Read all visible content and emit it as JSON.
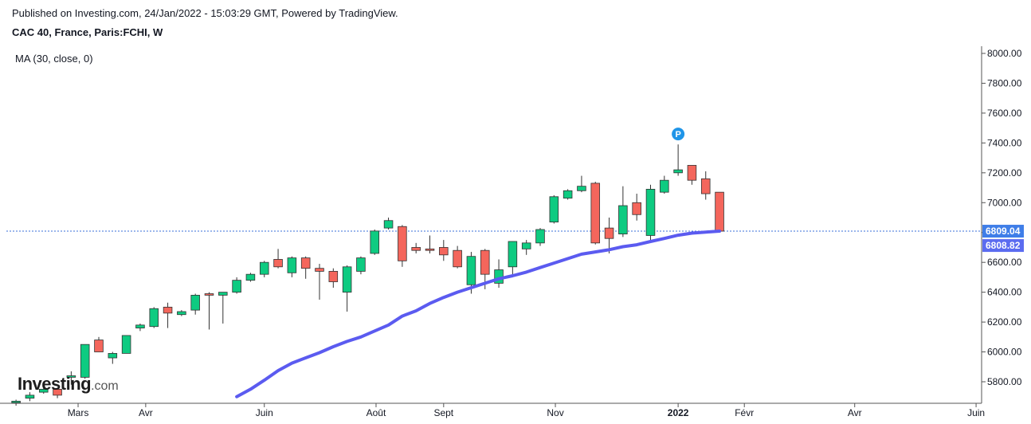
{
  "header": {
    "published": "Published on Investing.com, 24/Jan/2022 - 15:03:29 GMT, Powered by TradingView.",
    "symbol": "CAC 40, France, Paris:FCHI, W"
  },
  "indicator": {
    "label": "MA (30, close, 0)"
  },
  "logo": {
    "brand": "Investing",
    "tld": ".com"
  },
  "marker": {
    "label": "P"
  },
  "colors": {
    "up": "#0ecb81",
    "down": "#f4665c",
    "ma": "#5b5bf0",
    "price_line": "#3a6fd8",
    "price_tag": "#3f7ee8",
    "ma_tag": "#5b6cf0",
    "marker": "#1f95e8"
  },
  "chart_data": {
    "type": "candlestick",
    "y_axis": {
      "range": [
        5700,
        8050
      ],
      "ticks": [
        {
          "value": 5800,
          "label": "5800.00"
        },
        {
          "value": 6000,
          "label": "6000.00"
        },
        {
          "value": 6200,
          "label": "6200.00"
        },
        {
          "value": 6400,
          "label": "6400.00"
        },
        {
          "value": 6600,
          "label": "6600.00"
        },
        {
          "value": 6800,
          "label": "6800.00"
        },
        {
          "value": 7000,
          "label": "7000.00"
        },
        {
          "value": 7200,
          "label": "7200.00"
        },
        {
          "value": 7400,
          "label": "7400.00"
        },
        {
          "value": 7600,
          "label": "7600.00"
        },
        {
          "value": 7800,
          "label": "7800.00"
        },
        {
          "value": 8000,
          "label": "8000.00"
        }
      ]
    },
    "x_axis": {
      "week_range": [
        -0.7,
        70
      ],
      "ticks": [
        {
          "week": 4.5,
          "label": "Mars",
          "bold": false
        },
        {
          "week": 9.4,
          "label": "Avr",
          "bold": false
        },
        {
          "week": 18.0,
          "label": "Juin",
          "bold": false
        },
        {
          "week": 26.1,
          "label": "Août",
          "bold": false
        },
        {
          "week": 31.0,
          "label": "Sept",
          "bold": false
        },
        {
          "week": 39.1,
          "label": "Nov",
          "bold": false
        },
        {
          "week": 48.0,
          "label": "2022",
          "bold": true
        },
        {
          "week": 52.8,
          "label": "Févr",
          "bold": false
        },
        {
          "week": 60.8,
          "label": "Avr",
          "bold": false
        },
        {
          "week": 69.6,
          "label": "Juin",
          "bold": false
        }
      ]
    },
    "last_price": {
      "value": 6809.04,
      "label": "6809.04"
    },
    "ma_last": {
      "value": 6808.82,
      "label": "6808.82"
    },
    "candles": [
      {
        "o": 5660,
        "h": 5680,
        "l": 5640,
        "c": 5670
      },
      {
        "o": 5690,
        "h": 5730,
        "l": 5670,
        "c": 5710
      },
      {
        "o": 5730,
        "h": 5770,
        "l": 5720,
        "c": 5750
      },
      {
        "o": 5750,
        "h": 5760,
        "l": 5690,
        "c": 5710
      },
      {
        "o": 5830,
        "h": 5870,
        "l": 5780,
        "c": 5840
      },
      {
        "o": 5830,
        "h": 6050,
        "l": 5820,
        "c": 6050
      },
      {
        "o": 6080,
        "h": 6100,
        "l": 6000,
        "c": 6000
      },
      {
        "o": 5960,
        "h": 6000,
        "l": 5920,
        "c": 5990
      },
      {
        "o": 5990,
        "h": 6110,
        "l": 5990,
        "c": 6110
      },
      {
        "o": 6160,
        "h": 6190,
        "l": 6140,
        "c": 6180
      },
      {
        "o": 6170,
        "h": 6300,
        "l": 6160,
        "c": 6290
      },
      {
        "o": 6300,
        "h": 6330,
        "l": 6160,
        "c": 6260
      },
      {
        "o": 6250,
        "h": 6280,
        "l": 6240,
        "c": 6270
      },
      {
        "o": 6280,
        "h": 6390,
        "l": 6250,
        "c": 6380
      },
      {
        "o": 6390,
        "h": 6400,
        "l": 6150,
        "c": 6380
      },
      {
        "o": 6380,
        "h": 6400,
        "l": 6190,
        "c": 6400
      },
      {
        "o": 6400,
        "h": 6500,
        "l": 6390,
        "c": 6480
      },
      {
        "o": 6480,
        "h": 6530,
        "l": 6470,
        "c": 6520
      },
      {
        "o": 6520,
        "h": 6610,
        "l": 6500,
        "c": 6600
      },
      {
        "o": 6620,
        "h": 6690,
        "l": 6560,
        "c": 6570
      },
      {
        "o": 6530,
        "h": 6640,
        "l": 6500,
        "c": 6630
      },
      {
        "o": 6630,
        "h": 6640,
        "l": 6490,
        "c": 6560
      },
      {
        "o": 6560,
        "h": 6590,
        "l": 6350,
        "c": 6540
      },
      {
        "o": 6540,
        "h": 6560,
        "l": 6430,
        "c": 6470
      },
      {
        "o": 6400,
        "h": 6580,
        "l": 6270,
        "c": 6570
      },
      {
        "o": 6540,
        "h": 6640,
        "l": 6520,
        "c": 6630
      },
      {
        "o": 6660,
        "h": 6820,
        "l": 6650,
        "c": 6810
      },
      {
        "o": 6830,
        "h": 6900,
        "l": 6820,
        "c": 6880
      },
      {
        "o": 6840,
        "h": 6850,
        "l": 6570,
        "c": 6610
      },
      {
        "o": 6700,
        "h": 6730,
        "l": 6660,
        "c": 6680
      },
      {
        "o": 6690,
        "h": 6780,
        "l": 6660,
        "c": 6680
      },
      {
        "o": 6700,
        "h": 6750,
        "l": 6610,
        "c": 6650
      },
      {
        "o": 6680,
        "h": 6710,
        "l": 6560,
        "c": 6570
      },
      {
        "o": 6450,
        "h": 6670,
        "l": 6390,
        "c": 6640
      },
      {
        "o": 6680,
        "h": 6690,
        "l": 6420,
        "c": 6520
      },
      {
        "o": 6460,
        "h": 6620,
        "l": 6430,
        "c": 6550
      },
      {
        "o": 6570,
        "h": 6740,
        "l": 6520,
        "c": 6740
      },
      {
        "o": 6690,
        "h": 6750,
        "l": 6650,
        "c": 6730
      },
      {
        "o": 6730,
        "h": 6830,
        "l": 6710,
        "c": 6820
      },
      {
        "o": 6870,
        "h": 7050,
        "l": 6860,
        "c": 7040
      },
      {
        "o": 7030,
        "h": 7090,
        "l": 7020,
        "c": 7080
      },
      {
        "o": 7080,
        "h": 7180,
        "l": 7070,
        "c": 7110
      },
      {
        "o": 7130,
        "h": 7140,
        "l": 6720,
        "c": 6730
      },
      {
        "o": 6830,
        "h": 6900,
        "l": 6660,
        "c": 6760
      },
      {
        "o": 6790,
        "h": 7110,
        "l": 6770,
        "c": 6980
      },
      {
        "o": 7000,
        "h": 7060,
        "l": 6880,
        "c": 6920
      },
      {
        "o": 6780,
        "h": 7120,
        "l": 6740,
        "c": 7090
      },
      {
        "o": 7070,
        "h": 7180,
        "l": 7060,
        "c": 7150
      },
      {
        "o": 7200,
        "h": 7390,
        "l": 7180,
        "c": 7220
      },
      {
        "o": 7250,
        "h": 7250,
        "l": 7120,
        "c": 7150
      },
      {
        "o": 7160,
        "h": 7210,
        "l": 7020,
        "c": 7060
      },
      {
        "o": 7070,
        "h": 7070,
        "l": 6810,
        "c": 6809
      }
    ],
    "ma_line": [
      {
        "week": 16.0,
        "value": 5700
      },
      {
        "week": 17.0,
        "value": 5750
      },
      {
        "week": 18.0,
        "value": 5810
      },
      {
        "week": 19.0,
        "value": 5875
      },
      {
        "week": 20.0,
        "value": 5925
      },
      {
        "week": 21.0,
        "value": 5960
      },
      {
        "week": 22.0,
        "value": 5995
      },
      {
        "week": 23.0,
        "value": 6035
      },
      {
        "week": 24.0,
        "value": 6070
      },
      {
        "week": 25.0,
        "value": 6100
      },
      {
        "week": 26.0,
        "value": 6140
      },
      {
        "week": 27.0,
        "value": 6180
      },
      {
        "week": 28.0,
        "value": 6240
      },
      {
        "week": 29.0,
        "value": 6275
      },
      {
        "week": 30.0,
        "value": 6325
      },
      {
        "week": 31.0,
        "value": 6365
      },
      {
        "week": 32.0,
        "value": 6400
      },
      {
        "week": 33.0,
        "value": 6430
      },
      {
        "week": 34.0,
        "value": 6460
      },
      {
        "week": 35.0,
        "value": 6490
      },
      {
        "week": 36.0,
        "value": 6510
      },
      {
        "week": 37.0,
        "value": 6535
      },
      {
        "week": 38.0,
        "value": 6565
      },
      {
        "week": 39.0,
        "value": 6595
      },
      {
        "week": 40.0,
        "value": 6625
      },
      {
        "week": 41.0,
        "value": 6655
      },
      {
        "week": 42.0,
        "value": 6670
      },
      {
        "week": 43.0,
        "value": 6685
      },
      {
        "week": 44.0,
        "value": 6705
      },
      {
        "week": 45.0,
        "value": 6718
      },
      {
        "week": 46.0,
        "value": 6740
      },
      {
        "week": 47.0,
        "value": 6760
      },
      {
        "week": 48.0,
        "value": 6782
      },
      {
        "week": 49.0,
        "value": 6796
      },
      {
        "week": 50.0,
        "value": 6803
      },
      {
        "week": 51.0,
        "value": 6809
      }
    ],
    "marker_week": 48.0,
    "marker_value": 7460
  }
}
